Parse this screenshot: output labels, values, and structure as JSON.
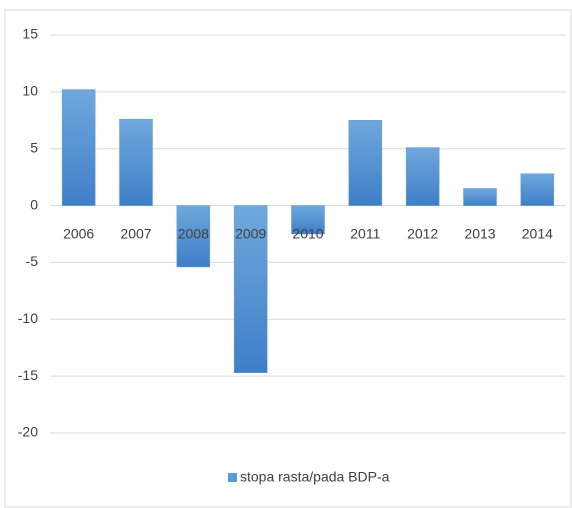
{
  "chart_data": {
    "type": "bar",
    "categories": [
      "2006",
      "2007",
      "2008",
      "2009",
      "2010",
      "2011",
      "2012",
      "2013",
      "2014"
    ],
    "series": [
      {
        "name": "stopa rasta/pada BDP-a",
        "color": "#5b9bd5",
        "values": [
          10.2,
          7.6,
          -5.4,
          -14.7,
          -2.5,
          7.5,
          5.1,
          1.5,
          2.8
        ]
      }
    ],
    "ylim": [
      -20,
      15
    ],
    "yticks": [
      -20,
      -15,
      -10,
      -5,
      0,
      5,
      10,
      15
    ],
    "grid": true,
    "legend": "bottom"
  }
}
